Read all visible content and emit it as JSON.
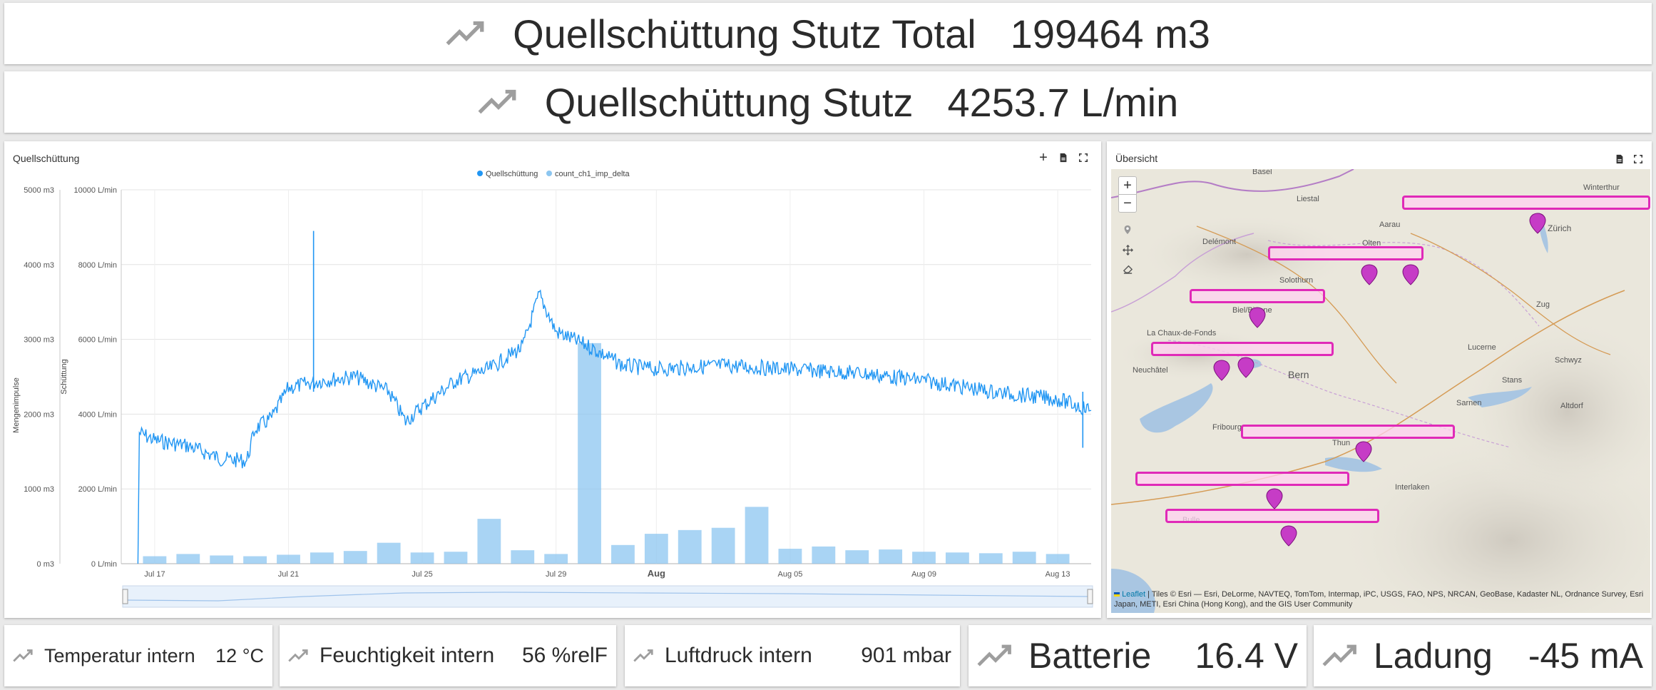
{
  "top_stats": [
    {
      "label": "Quellschüttung Stutz Total",
      "value": "199464 m3"
    },
    {
      "label": "Quellschüttung Stutz",
      "value": "4253.7 L/min"
    }
  ],
  "chart_panel": {
    "title": "Quellschüttung",
    "legend": [
      "Quellschüttung",
      "count_ch1_imp_delta"
    ],
    "left_axis_title": "Mengenimpulse",
    "right_axis_title": "Schüttung",
    "tool_add": "+",
    "tool_export": "⎙",
    "tool_fullscreen": "⛶"
  },
  "chart_data": {
    "type": "line",
    "title": "Quellschüttung",
    "x_tick_labels": [
      "Jul 17",
      "Jul 21",
      "Jul 25",
      "Jul 29",
      "Aug",
      "Aug 05",
      "Aug 09",
      "Aug 13"
    ],
    "y_left_tick_labels": [
      "0 m3",
      "1000 m3",
      "2000 m3",
      "3000 m3",
      "4000 m3",
      "5000 m3"
    ],
    "y_right_tick_labels": [
      "0 L/min",
      "2000 L/min",
      "4000 L/min",
      "6000 L/min",
      "8000 L/min",
      "10000 L/min"
    ],
    "y_left_label": "Mengenimpulse",
    "y_right_label": "Schüttung",
    "ylim_left": [
      0,
      5000
    ],
    "ylim_right": [
      0,
      10000
    ],
    "x_range_days": [
      "Jul 16",
      "Aug 14"
    ],
    "legend_position": "top-center",
    "grid": true,
    "series": [
      {
        "name": "Quellschüttung",
        "axis": "right",
        "color": "#2196f3",
        "type": "line",
        "points": [
          {
            "x": "Jul 16 12:00",
            "y": 0
          },
          {
            "x": "Jul 16 13:00",
            "y": 3500
          },
          {
            "x": "Jul 17",
            "y": 3300
          },
          {
            "x": "Jul 18",
            "y": 3150
          },
          {
            "x": "Jul 19",
            "y": 2800
          },
          {
            "x": "Jul 19 18:00",
            "y": 2750
          },
          {
            "x": "Jul 20",
            "y": 3600
          },
          {
            "x": "Jul 20 12:00",
            "y": 3900
          },
          {
            "x": "Jul 21",
            "y": 4700
          },
          {
            "x": "Jul 22",
            "y": 4900
          },
          {
            "x": "Jul 23",
            "y": 5000
          },
          {
            "x": "Jul 24",
            "y": 4600
          },
          {
            "x": "Jul 24 12:00",
            "y": 3800
          },
          {
            "x": "Jul 25",
            "y": 4200
          },
          {
            "x": "Jul 26",
            "y": 4900
          },
          {
            "x": "Jul 27",
            "y": 5200
          },
          {
            "x": "Jul 28",
            "y": 5800
          },
          {
            "x": "Jul 28 12:00",
            "y": 7200
          },
          {
            "x": "Jul 29",
            "y": 6200
          },
          {
            "x": "Jul 30",
            "y": 5800
          },
          {
            "x": "Jul 31",
            "y": 5300
          },
          {
            "x": "Aug 01",
            "y": 5200
          },
          {
            "x": "Aug 03",
            "y": 5300
          },
          {
            "x": "Aug 05",
            "y": 5200
          },
          {
            "x": "Aug 07",
            "y": 5100
          },
          {
            "x": "Aug 09",
            "y": 4900
          },
          {
            "x": "Aug 11",
            "y": 4600
          },
          {
            "x": "Aug 13",
            "y": 4400
          },
          {
            "x": "Aug 14",
            "y": 4100
          }
        ],
        "spikes": [
          {
            "x": "Jul 21 18:00",
            "y": 8900
          },
          {
            "x": "Aug 13 18:00",
            "y": 3100
          }
        ]
      },
      {
        "name": "count_ch1_imp_delta",
        "axis": "left",
        "color": "#8cc6f0",
        "type": "bar",
        "points": [
          {
            "x": "Jul 17",
            "y": 100
          },
          {
            "x": "Jul 18",
            "y": 130
          },
          {
            "x": "Jul 19",
            "y": 110
          },
          {
            "x": "Jul 20",
            "y": 100
          },
          {
            "x": "Jul 21",
            "y": 120
          },
          {
            "x": "Jul 22",
            "y": 150
          },
          {
            "x": "Jul 23",
            "y": 170
          },
          {
            "x": "Jul 24",
            "y": 280
          },
          {
            "x": "Jul 25",
            "y": 150
          },
          {
            "x": "Jul 26",
            "y": 160
          },
          {
            "x": "Jul 27",
            "y": 600
          },
          {
            "x": "Jul 28",
            "y": 180
          },
          {
            "x": "Jul 29",
            "y": 130
          },
          {
            "x": "Jul 30",
            "y": 2950
          },
          {
            "x": "Jul 31",
            "y": 250
          },
          {
            "x": "Aug 01",
            "y": 400
          },
          {
            "x": "Aug 02",
            "y": 450
          },
          {
            "x": "Aug 03",
            "y": 480
          },
          {
            "x": "Aug 04",
            "y": 760
          },
          {
            "x": "Aug 05",
            "y": 200
          },
          {
            "x": "Aug 06",
            "y": 230
          },
          {
            "x": "Aug 07",
            "y": 180
          },
          {
            "x": "Aug 08",
            "y": 190
          },
          {
            "x": "Aug 09",
            "y": 160
          },
          {
            "x": "Aug 10",
            "y": 150
          },
          {
            "x": "Aug 11",
            "y": 140
          },
          {
            "x": "Aug 12",
            "y": 160
          },
          {
            "x": "Aug 13",
            "y": 130
          }
        ]
      }
    ]
  },
  "map_panel": {
    "title": "Übersicht",
    "zoom_in": "+",
    "zoom_out": "−",
    "attribution_leaflet": "Leaflet",
    "attribution_text": " | Tiles © Esri — Esri, DeLorme, NAVTEQ, TomTom, Intermap, iPC, USGS, FAO, NPS, NRCAN, GeoBase, Kadaster NL, Ordnance Survey, Esri Japan, METI, Esri China (Hong Kong), and the GIS User Community",
    "cities": [
      "Basel",
      "Liestal",
      "Aarau",
      "Zürich",
      "Winterthur",
      "Delémont",
      "Olten",
      "Biel/Bienne",
      "La Chaux-de-Fonds",
      "Solothurn",
      "Neuchâtel",
      "Bern",
      "Lucerne",
      "Zug",
      "Schwyz",
      "Sarnen",
      "Stans",
      "Altdorf",
      "Fribourg",
      "Thun",
      "Bulle",
      "Interlaken"
    ]
  },
  "bottom_stats": [
    {
      "label": "Temperatur intern",
      "value": "12 °C"
    },
    {
      "label": "Feuchtigkeit intern",
      "value": "56 %relF"
    },
    {
      "label": "Luftdruck intern",
      "value": "901 mbar"
    },
    {
      "label": "Batterie",
      "value": "16.4 V"
    },
    {
      "label": "Ladung",
      "value": "-45 mA"
    }
  ]
}
